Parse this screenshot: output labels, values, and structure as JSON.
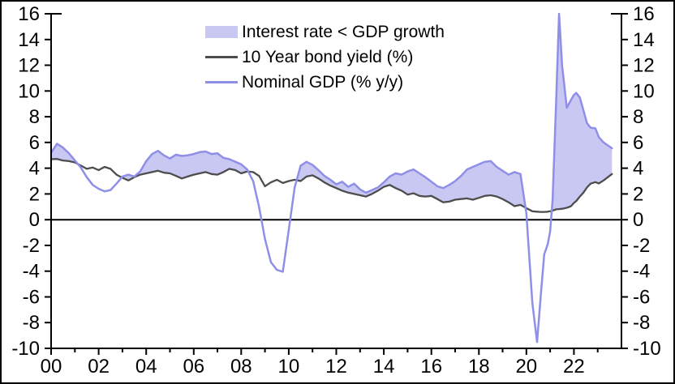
{
  "legend": {
    "items": [
      {
        "label": "Interest rate < GDP growth",
        "type": "area",
        "color": "#c8c8f2"
      },
      {
        "label": "10 Year bond yield (%)",
        "type": "line",
        "color": "#4d4d4d"
      },
      {
        "label": "Nominal GDP (% y/y)",
        "type": "line",
        "color": "#8f8fe8"
      }
    ]
  },
  "chart_data": {
    "type": "line",
    "title": "",
    "xlabel": "",
    "ylabel": "",
    "grid": false,
    "legend_position": "top-center",
    "xlim": [
      2000,
      2024
    ],
    "ylim": [
      -10,
      16
    ],
    "y_tick_values": [
      16,
      14,
      12,
      10,
      8,
      6,
      4,
      2,
      0,
      -2,
      -4,
      -6,
      -8,
      -10
    ],
    "y_tick_labels": [
      "16",
      "14",
      "12",
      "10",
      "8",
      "6",
      "4",
      "2",
      "0",
      "-2",
      "-4",
      "-6",
      "-8",
      "-10"
    ],
    "x_major_tick_years": [
      2000,
      2002,
      2004,
      2006,
      2008,
      2010,
      2012,
      2014,
      2016,
      2018,
      2020,
      2022
    ],
    "x_major_tick_labels": [
      "00",
      "02",
      "04",
      "06",
      "08",
      "10",
      "12",
      "14",
      "16",
      "18",
      "20",
      "22"
    ],
    "x_minor_tick_years": [
      2001,
      2003,
      2005,
      2007,
      2009,
      2011,
      2013,
      2015,
      2017,
      2019,
      2021,
      2023
    ],
    "fill_between": {
      "label": "Interest rate < GDP growth",
      "color": "#c8c8f2",
      "rule": "shade region where Nominal GDP growth exceeds 10 Year bond yield"
    },
    "x": [
      2000,
      2000.25,
      2000.5,
      2000.75,
      2001,
      2001.25,
      2001.5,
      2001.75,
      2002,
      2002.25,
      2002.5,
      2002.75,
      2003,
      2003.25,
      2003.5,
      2003.75,
      2004,
      2004.25,
      2004.5,
      2004.75,
      2005,
      2005.25,
      2005.5,
      2005.75,
      2006,
      2006.25,
      2006.5,
      2006.75,
      2007,
      2007.25,
      2007.5,
      2007.75,
      2008,
      2008.25,
      2008.5,
      2008.75,
      2009,
      2009.25,
      2009.5,
      2009.75,
      2010,
      2010.25,
      2010.5,
      2010.75,
      2011,
      2011.25,
      2011.5,
      2011.75,
      2012,
      2012.25,
      2012.5,
      2012.75,
      2013,
      2013.25,
      2013.5,
      2013.75,
      2014,
      2014.25,
      2014.5,
      2014.75,
      2015,
      2015.25,
      2015.5,
      2015.75,
      2016,
      2016.25,
      2016.5,
      2016.75,
      2017,
      2017.25,
      2017.5,
      2017.75,
      2018,
      2018.25,
      2018.5,
      2018.75,
      2019,
      2019.25,
      2019.5,
      2019.75,
      2020,
      2020.25,
      2020.45,
      2020.6,
      2020.75,
      2020.9,
      2021,
      2021.1,
      2021.25,
      2021.375,
      2021.5,
      2021.7,
      2021.875,
      2022,
      2022.1,
      2022.25,
      2022.4,
      2022.55,
      2022.7,
      2022.9,
      2023.05,
      2023.25,
      2023.6
    ],
    "series": [
      {
        "name": "10 Year bond yield (%)",
        "color": "#4d4d4d",
        "values": [
          4.7,
          4.72,
          4.6,
          4.55,
          4.45,
          4.2,
          3.95,
          4.05,
          3.85,
          4.1,
          3.95,
          3.5,
          3.25,
          3.05,
          3.3,
          3.5,
          3.6,
          3.7,
          3.8,
          3.65,
          3.6,
          3.4,
          3.2,
          3.35,
          3.5,
          3.6,
          3.7,
          3.55,
          3.5,
          3.7,
          3.95,
          3.85,
          3.6,
          3.75,
          3.7,
          3.4,
          2.6,
          2.9,
          3.1,
          2.85,
          3.0,
          3.1,
          3.0,
          3.35,
          3.45,
          3.2,
          2.9,
          2.65,
          2.45,
          2.25,
          2.1,
          2.0,
          1.9,
          1.8,
          2.0,
          2.25,
          2.55,
          2.7,
          2.45,
          2.25,
          1.95,
          2.05,
          1.85,
          1.8,
          1.85,
          1.6,
          1.35,
          1.4,
          1.55,
          1.6,
          1.65,
          1.55,
          1.7,
          1.85,
          1.9,
          1.8,
          1.6,
          1.35,
          1.05,
          1.15,
          0.9,
          0.65,
          0.62,
          0.6,
          0.6,
          0.62,
          0.65,
          0.7,
          0.8,
          0.82,
          0.85,
          0.92,
          1.05,
          1.3,
          1.45,
          1.8,
          2.1,
          2.5,
          2.8,
          2.92,
          2.82,
          3.05,
          3.55
        ]
      },
      {
        "name": "Nominal GDP (% y/y)",
        "color": "#8f8fe8",
        "values": [
          5.2,
          5.9,
          5.6,
          5.15,
          4.6,
          4.05,
          3.3,
          2.7,
          2.4,
          2.2,
          2.3,
          2.8,
          3.35,
          3.5,
          3.35,
          3.75,
          4.55,
          5.1,
          5.35,
          5.0,
          4.75,
          5.05,
          4.95,
          5.0,
          5.1,
          5.25,
          5.3,
          5.1,
          5.15,
          4.8,
          4.7,
          4.5,
          4.3,
          3.9,
          3.0,
          1.0,
          -1.5,
          -3.3,
          -3.9,
          -4.05,
          -0.8,
          2.5,
          4.2,
          4.5,
          4.25,
          3.85,
          3.4,
          3.1,
          2.75,
          2.95,
          2.55,
          2.8,
          2.35,
          2.1,
          2.3,
          2.5,
          2.9,
          3.35,
          3.6,
          3.5,
          3.75,
          3.9,
          3.6,
          3.3,
          2.95,
          2.6,
          2.45,
          2.7,
          3.0,
          3.4,
          3.9,
          4.1,
          4.3,
          4.5,
          4.55,
          4.1,
          3.8,
          3.5,
          3.7,
          3.55,
          0.5,
          -6.5,
          -9.5,
          -6.0,
          -2.7,
          -1.9,
          -0.9,
          1.5,
          9.0,
          16.0,
          12.0,
          8.7,
          9.3,
          9.7,
          9.85,
          9.5,
          8.5,
          7.5,
          7.15,
          7.1,
          6.4,
          6.0,
          5.55
        ]
      }
    ]
  }
}
